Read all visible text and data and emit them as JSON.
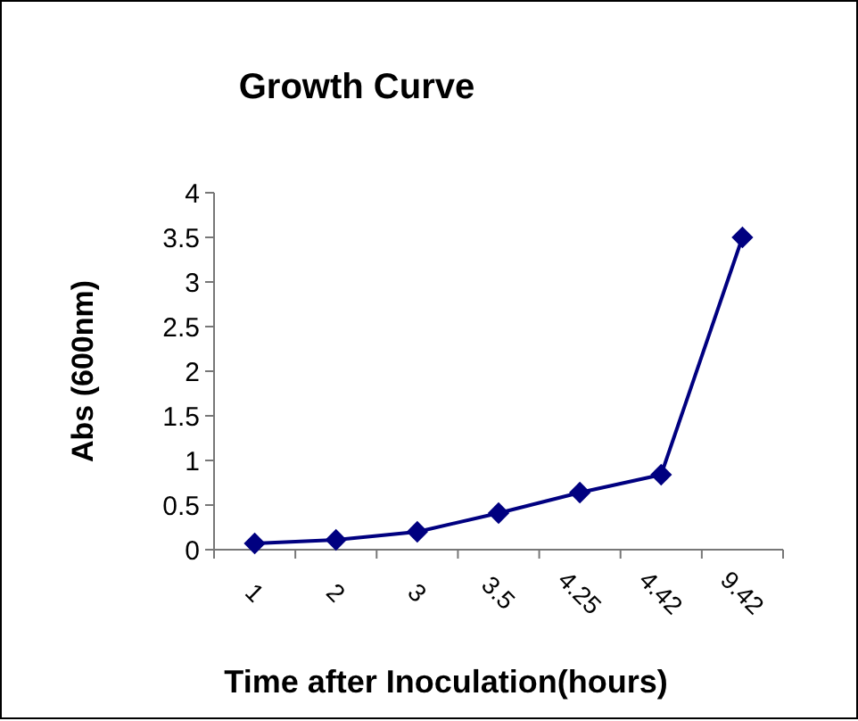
{
  "chart_data": {
    "type": "line",
    "title": "Growth Curve",
    "xlabel": "Time after Inoculation(hours)",
    "ylabel": "Abs (600nm)",
    "categories": [
      "1",
      "2",
      "3",
      "3.5",
      "4.25",
      "4.42",
      "9.42"
    ],
    "series": [
      {
        "color": "#000080",
        "values": [
          0.07,
          0.11,
          0.2,
          0.41,
          0.64,
          0.84,
          3.5
        ]
      }
    ],
    "ylim": [
      0,
      4
    ],
    "yticks": [
      0,
      0.5,
      1,
      1.5,
      2,
      2.5,
      3,
      3.5,
      4
    ],
    "marker": "diamond",
    "line_style": "solid",
    "grid": false
  }
}
